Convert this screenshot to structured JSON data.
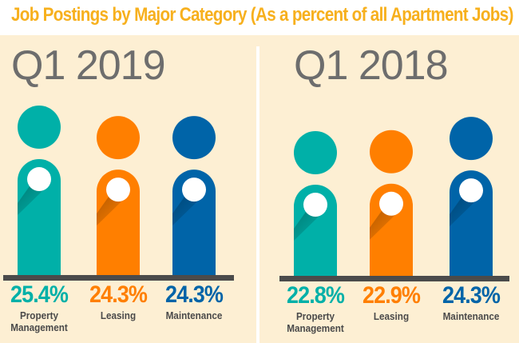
{
  "chart_data": [
    {
      "type": "bar",
      "title": "Job Postings by Major Category (As a percent of all Apartment Jobs)",
      "subtitle": "Q1 2019",
      "categories": [
        "Property Management",
        "Leasing",
        "Maintenance"
      ],
      "values": [
        25.4,
        24.3,
        24.3
      ],
      "value_labels": [
        "25.4%",
        "24.3%",
        "24.3%"
      ],
      "colors": [
        "#00b0a8",
        "#ff7f00",
        "#0064a8"
      ]
    },
    {
      "type": "bar",
      "subtitle": "Q1 2018",
      "categories": [
        "Property Management",
        "Leasing",
        "Maintenance"
      ],
      "values": [
        22.8,
        22.9,
        24.3
      ],
      "value_labels": [
        "22.8%",
        "22.9%",
        "24.3%"
      ],
      "colors": [
        "#00b0a8",
        "#ff7f00",
        "#0064a8"
      ]
    }
  ],
  "header": {
    "title": "Job Postings by Major Category (As a percent of all Apartment Jobs)"
  },
  "panels": [
    {
      "period": "Q1 2019",
      "labels": [
        "Property\nManagement",
        "Leasing",
        "Maintenance"
      ],
      "pcts": [
        "25.4%",
        "24.3%",
        "24.3%"
      ]
    },
    {
      "period": "Q1 2018",
      "labels": [
        "Property\nManagement",
        "Leasing",
        "Maintenance"
      ],
      "pcts": [
        "22.8%",
        "22.9%",
        "24.3%"
      ]
    }
  ]
}
